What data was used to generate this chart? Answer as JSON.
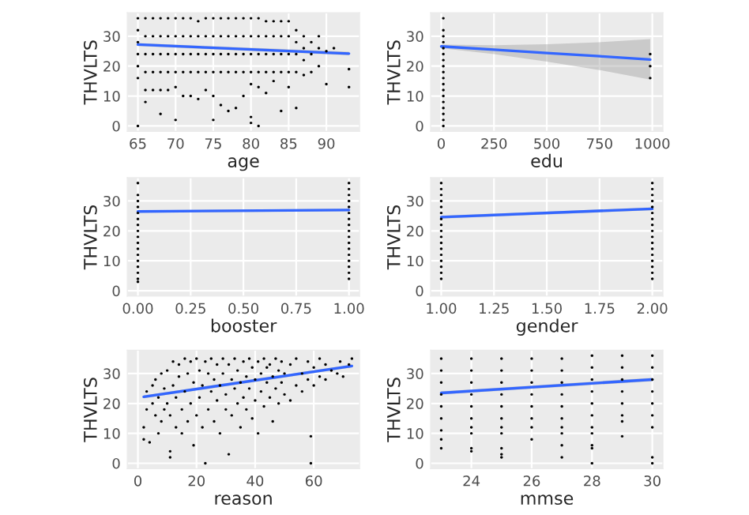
{
  "chart_data": [
    {
      "type": "scatter",
      "xlabel": "age",
      "ylabel": "THVLTS",
      "xlim": [
        63.6,
        94.4
      ],
      "ylim": [
        -1.8,
        37.8
      ],
      "xticks": [
        65,
        70,
        75,
        80,
        85,
        90
      ],
      "yticks": [
        0,
        10,
        20,
        30
      ],
      "grid": true,
      "series": [
        {
          "type": "scatter",
          "color": "#000000",
          "x": [
            65,
            65,
            65,
            65,
            65,
            65,
            65,
            66,
            66,
            66,
            66,
            66,
            66,
            67,
            67,
            67,
            67,
            67,
            68,
            68,
            68,
            68,
            68,
            68,
            69,
            69,
            69,
            69,
            69,
            70,
            70,
            70,
            70,
            70,
            70,
            71,
            71,
            71,
            71,
            71,
            72,
            72,
            72,
            72,
            72,
            73,
            73,
            73,
            73,
            73,
            74,
            74,
            74,
            74,
            74,
            75,
            75,
            75,
            75,
            75,
            75,
            76,
            76,
            76,
            76,
            76,
            77,
            77,
            77,
            77,
            77,
            78,
            78,
            78,
            78,
            78,
            79,
            79,
            79,
            79,
            79,
            80,
            80,
            80,
            80,
            80,
            80,
            80,
            81,
            81,
            81,
            81,
            81,
            81,
            82,
            82,
            82,
            82,
            82,
            83,
            83,
            83,
            83,
            83,
            84,
            84,
            84,
            84,
            84,
            85,
            85,
            85,
            85,
            85,
            86,
            86,
            86,
            86,
            86,
            87,
            87,
            87,
            87,
            88,
            88,
            88,
            89,
            89,
            89,
            90,
            90,
            91,
            93,
            93
          ],
          "values": [
            36,
            32,
            28,
            24,
            20,
            16,
            0,
            36,
            30,
            24,
            18,
            12,
            8,
            36,
            30,
            24,
            18,
            12,
            36,
            30,
            24,
            18,
            12,
            4,
            36,
            30,
            24,
            18,
            12,
            36,
            30,
            24,
            18,
            13,
            2,
            36,
            30,
            24,
            18,
            10,
            36,
            30,
            24,
            18,
            10,
            35,
            30,
            24,
            18,
            9,
            36,
            30,
            24,
            18,
            12,
            36,
            30,
            24,
            18,
            10,
            2,
            36,
            30,
            24,
            18,
            7,
            36,
            30,
            24,
            18,
            5,
            36,
            30,
            24,
            18,
            6,
            36,
            30,
            24,
            18,
            10,
            36,
            30,
            24,
            18,
            14,
            3,
            1,
            36,
            30,
            24,
            18,
            13,
            0,
            35,
            30,
            24,
            18,
            11,
            35,
            30,
            24,
            18,
            15,
            35,
            30,
            24,
            18,
            5,
            35,
            30,
            24,
            18,
            13,
            32,
            28,
            24,
            18,
            6,
            30,
            26,
            22,
            17,
            28,
            24,
            18,
            30,
            26,
            20,
            25,
            14,
            26,
            19,
            13
          ]
        },
        {
          "type": "line",
          "color": "#3366ff",
          "x": [
            65,
            93
          ],
          "values": [
            27.2,
            24.2
          ],
          "lower": [
            26.7,
            23.6
          ],
          "upper": [
            27.7,
            24.8
          ]
        }
      ]
    },
    {
      "type": "scatter",
      "xlabel": "edu",
      "ylabel": "THVLTS",
      "xlim": [
        -50,
        1050
      ],
      "ylim": [
        -1.8,
        37.8
      ],
      "xticks": [
        0,
        250,
        500,
        750,
        1000
      ],
      "yticks": [
        0,
        10,
        20,
        30
      ],
      "grid": true,
      "series": [
        {
          "type": "scatter",
          "color": "#000000",
          "x": [
            10,
            10,
            10,
            10,
            10,
            10,
            10,
            10,
            10,
            10,
            10,
            10,
            10,
            10,
            10,
            10,
            10,
            10,
            990,
            990,
            990
          ],
          "values": [
            0,
            2,
            4,
            6,
            8,
            10,
            12,
            14,
            16,
            18,
            20,
            22,
            24,
            26,
            28,
            30,
            32,
            36,
            16,
            20,
            24
          ]
        },
        {
          "type": "line",
          "color": "#3366ff",
          "x": [
            0,
            250,
            500,
            750,
            990
          ],
          "values": [
            26.6,
            25.5,
            24.4,
            23.3,
            22.2
          ],
          "lower": [
            26.0,
            24.0,
            21.5,
            18.7,
            15.5
          ],
          "upper": [
            27.2,
            27.0,
            27.3,
            28.0,
            29.0
          ]
        }
      ]
    },
    {
      "type": "scatter",
      "xlabel": "booster",
      "ylabel": "THVLTS",
      "xlim": [
        -0.05,
        1.05
      ],
      "ylim": [
        -1.8,
        37.8
      ],
      "xticks": [
        {
          "value": 0,
          "label": "0.00"
        },
        {
          "value": 0.25,
          "label": "0.25"
        },
        {
          "value": 0.5,
          "label": "0.50"
        },
        {
          "value": 0.75,
          "label": "0.75"
        },
        {
          "value": 1,
          "label": "1.00"
        }
      ],
      "yticks": [
        0,
        10,
        20,
        30
      ],
      "grid": true,
      "series": [
        {
          "type": "scatter",
          "color": "#000000",
          "x": [
            0,
            0,
            0,
            0,
            0,
            0,
            0,
            0,
            0,
            0,
            0,
            0,
            0,
            0,
            0,
            0,
            0,
            1,
            1,
            1,
            1,
            1,
            1,
            1,
            1,
            1,
            1,
            1,
            1,
            1,
            1,
            1,
            1,
            1
          ],
          "values": [
            3,
            4,
            6,
            8,
            10,
            12,
            14,
            16,
            18,
            20,
            22,
            24,
            26,
            28,
            30,
            32,
            36,
            4,
            6,
            8,
            10,
            12,
            14,
            16,
            18,
            20,
            22,
            24,
            26,
            28,
            30,
            32,
            34,
            36
          ]
        },
        {
          "type": "line",
          "color": "#3366ff",
          "x": [
            0,
            1
          ],
          "values": [
            26.5,
            27.0
          ],
          "lower": [
            26.1,
            26.6
          ],
          "upper": [
            26.9,
            27.4
          ]
        }
      ]
    },
    {
      "type": "scatter",
      "xlabel": "gender",
      "ylabel": "THVLTS",
      "xlim": [
        0.95,
        2.05
      ],
      "ylim": [
        -1.8,
        37.8
      ],
      "xticks": [
        {
          "value": 1,
          "label": "1.00"
        },
        {
          "value": 1.25,
          "label": "1.25"
        },
        {
          "value": 1.5,
          "label": "1.50"
        },
        {
          "value": 1.75,
          "label": "1.75"
        },
        {
          "value": 2,
          "label": "2.00"
        }
      ],
      "yticks": [
        0,
        10,
        20,
        30
      ],
      "grid": true,
      "series": [
        {
          "type": "scatter",
          "color": "#000000",
          "x": [
            1,
            1,
            1,
            1,
            1,
            1,
            1,
            1,
            1,
            1,
            1,
            1,
            1,
            1,
            1,
            1,
            1,
            2,
            2,
            2,
            2,
            2,
            2,
            2,
            2,
            2,
            2,
            2,
            2,
            2,
            2,
            2,
            2,
            2
          ],
          "values": [
            4,
            6,
            8,
            10,
            12,
            14,
            16,
            18,
            20,
            22,
            24,
            26,
            28,
            30,
            32,
            34,
            36,
            4,
            6,
            8,
            10,
            12,
            14,
            16,
            18,
            20,
            22,
            24,
            26,
            28,
            30,
            32,
            34,
            36
          ]
        },
        {
          "type": "line",
          "color": "#3366ff",
          "x": [
            1,
            2
          ],
          "values": [
            24.6,
            27.4
          ],
          "lower": [
            24.1,
            26.9
          ],
          "upper": [
            25.1,
            27.9
          ]
        }
      ]
    },
    {
      "type": "scatter",
      "xlabel": "reason",
      "ylabel": "THVLTS",
      "xlim": [
        -3.6,
        75.6
      ],
      "ylim": [
        -1.8,
        37.8
      ],
      "xticks": [
        0,
        20,
        40,
        60
      ],
      "yticks": [
        0,
        10,
        20,
        30
      ],
      "grid": true,
      "series": [
        {
          "type": "scatter",
          "color": "#000000",
          "x": [
            2,
            2,
            3,
            3,
            4,
            5,
            5,
            6,
            6,
            7,
            7,
            8,
            8,
            9,
            9,
            10,
            10,
            11,
            11,
            11,
            12,
            12,
            13,
            13,
            14,
            14,
            15,
            15,
            16,
            16,
            17,
            17,
            18,
            18,
            19,
            19,
            20,
            20,
            21,
            21,
            22,
            22,
            23,
            23,
            24,
            24,
            25,
            25,
            26,
            26,
            27,
            27,
            28,
            28,
            29,
            29,
            30,
            30,
            31,
            31,
            32,
            32,
            33,
            33,
            34,
            34,
            35,
            35,
            36,
            36,
            37,
            37,
            38,
            38,
            39,
            39,
            40,
            40,
            41,
            41,
            42,
            42,
            43,
            43,
            44,
            44,
            45,
            45,
            46,
            46,
            47,
            47,
            48,
            48,
            49,
            49,
            50,
            50,
            52,
            52,
            54,
            54,
            56,
            56,
            58,
            58,
            59,
            59,
            60,
            60,
            62,
            62,
            64,
            64,
            66,
            68,
            69,
            70,
            72,
            73
          ],
          "values": [
            12,
            8,
            18,
            24,
            7,
            20,
            26,
            16,
            28,
            10,
            22,
            14,
            30,
            18,
            25,
            20,
            31,
            2,
            4,
            16,
            26,
            34,
            12,
            22,
            29,
            33,
            10,
            18,
            24,
            35,
            14,
            30,
            20,
            34,
            6,
            27,
            16,
            35,
            22,
            31,
            12,
            26,
            0,
            34,
            18,
            30,
            24,
            35,
            14,
            28,
            21,
            33,
            10,
            26,
            30,
            35,
            18,
            23,
            3,
            33,
            16,
            28,
            25,
            35,
            20,
            31,
            12,
            27,
            22,
            34,
            18,
            29,
            25,
            35,
            15,
            32,
            21,
            28,
            10,
            34,
            24,
            30,
            19,
            35,
            27,
            32,
            22,
            33,
            14,
            29,
            25,
            35,
            20,
            31,
            27,
            34,
            23,
            30,
            21,
            33,
            26,
            35,
            24,
            30,
            28,
            34,
            9,
            0,
            26,
            32,
            29,
            35,
            28,
            33,
            31,
            30,
            34,
            29,
            33,
            35
          ]
        },
        {
          "type": "line",
          "color": "#3366ff",
          "x": [
            2,
            73
          ],
          "values": [
            22.2,
            32.5
          ],
          "lower": [
            21.7,
            32.0
          ],
          "upper": [
            22.7,
            33.0
          ]
        }
      ]
    },
    {
      "type": "scatter",
      "xlabel": "mmse",
      "ylabel": "THVLTS",
      "xlim": [
        22.65,
        30.35
      ],
      "ylim": [
        -1.8,
        37.8
      ],
      "xticks": [
        24,
        26,
        28,
        30
      ],
      "yticks": [
        0,
        10,
        20,
        30
      ],
      "grid": true,
      "series": [
        {
          "type": "scatter",
          "color": "#000000",
          "x": [
            23,
            23,
            23,
            23,
            23,
            23,
            23,
            23,
            23,
            24,
            24,
            24,
            24,
            24,
            24,
            24,
            24,
            24,
            24,
            25,
            25,
            25,
            25,
            25,
            25,
            25,
            25,
            25,
            25,
            25,
            26,
            26,
            26,
            26,
            26,
            26,
            26,
            26,
            27,
            27,
            27,
            27,
            27,
            27,
            27,
            27,
            27,
            27,
            28,
            28,
            28,
            28,
            28,
            28,
            28,
            28,
            28,
            28,
            28,
            29,
            29,
            29,
            29,
            29,
            29,
            29,
            29,
            30,
            30,
            30,
            30,
            30,
            30,
            30,
            30,
            30
          ],
          "values": [
            35,
            31,
            27,
            23,
            19,
            15,
            11,
            8,
            5,
            35,
            31,
            27,
            23,
            19,
            15,
            12,
            10,
            5,
            4,
            35,
            31,
            27,
            23,
            19,
            15,
            12,
            10,
            5,
            3,
            2,
            35,
            31,
            27,
            23,
            19,
            15,
            12,
            8,
            35,
            31,
            27,
            23,
            19,
            15,
            12,
            10,
            6,
            2,
            36,
            32,
            28,
            24,
            20,
            16,
            12,
            10,
            6,
            5,
            0,
            36,
            32,
            28,
            24,
            20,
            16,
            14,
            9,
            36,
            32,
            28,
            24,
            20,
            16,
            12,
            2,
            0
          ]
        },
        {
          "type": "line",
          "color": "#3366ff",
          "x": [
            23,
            30
          ],
          "values": [
            23.5,
            28.0
          ],
          "lower": [
            23.0,
            27.4
          ],
          "upper": [
            24.0,
            28.6
          ]
        }
      ]
    }
  ]
}
